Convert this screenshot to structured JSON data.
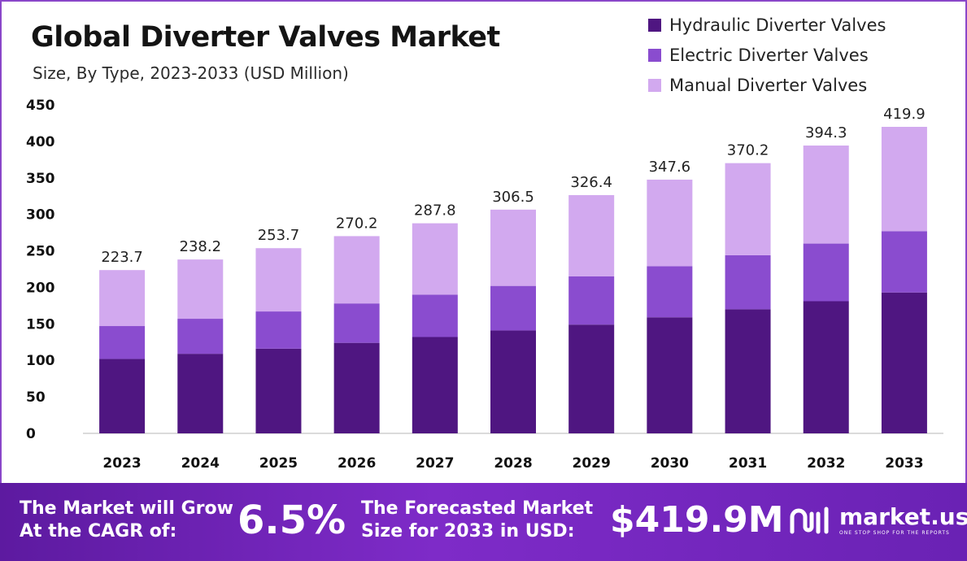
{
  "header": {
    "title": "Global Diverter Valves Market",
    "subtitle": "Size, By Type, 2023-2033 (USD Million)"
  },
  "legend": [
    {
      "label": "Hydraulic Diverter Valves",
      "color": "#4f1681"
    },
    {
      "label": "Electric Diverter Valves",
      "color": "#8a4ccf"
    },
    {
      "label": "Manual Diverter Valves",
      "color": "#d2a9ef"
    }
  ],
  "chart_data": {
    "type": "bar",
    "stacked": true,
    "title": "Global Diverter Valves Market",
    "subtitle": "Size, By Type, 2023-2033 (USD Million)",
    "xlabel": "",
    "ylabel": "",
    "ylim": [
      0,
      450
    ],
    "yticks": [
      0,
      50,
      100,
      150,
      200,
      250,
      300,
      350,
      400,
      450
    ],
    "grid": false,
    "legend_position": "top-right",
    "categories": [
      "2023",
      "2024",
      "2025",
      "2026",
      "2027",
      "2028",
      "2029",
      "2030",
      "2031",
      "2032",
      "2033"
    ],
    "series": [
      {
        "name": "Hydraulic Diverter Valves",
        "color": "#4f1681",
        "values": [
          102,
          109,
          116,
          124,
          132,
          141,
          149,
          159,
          170,
          181,
          193
        ]
      },
      {
        "name": "Electric Diverter Valves",
        "color": "#8a4ccf",
        "values": [
          45,
          48,
          51,
          54,
          58,
          61,
          66,
          70,
          74,
          79,
          84
        ]
      },
      {
        "name": "Manual Diverter Valves",
        "color": "#d2a9ef",
        "values": [
          76.7,
          81.2,
          86.7,
          92.2,
          97.8,
          104.5,
          111.4,
          118.6,
          126.2,
          134.3,
          142.9
        ]
      }
    ],
    "totals": [
      223.7,
      238.2,
      253.7,
      270.2,
      287.8,
      306.5,
      326.4,
      347.6,
      370.2,
      394.3,
      419.9
    ],
    "total_labels": [
      "223.7",
      "238.2",
      "253.7",
      "270.2",
      "287.8",
      "306.5",
      "326.4",
      "347.6",
      "370.2",
      "394.3",
      "419.9"
    ]
  },
  "footer": {
    "cagr_label": "The Market will Grow At the CAGR of:",
    "cagr_value": "6.5%",
    "forecast_label": "The Forecasted Market Size for 2033 in USD:",
    "forecast_value": "$419.9M",
    "brand_name": "market.us",
    "brand_tagline": "ONE STOP SHOP FOR THE REPORTS"
  }
}
